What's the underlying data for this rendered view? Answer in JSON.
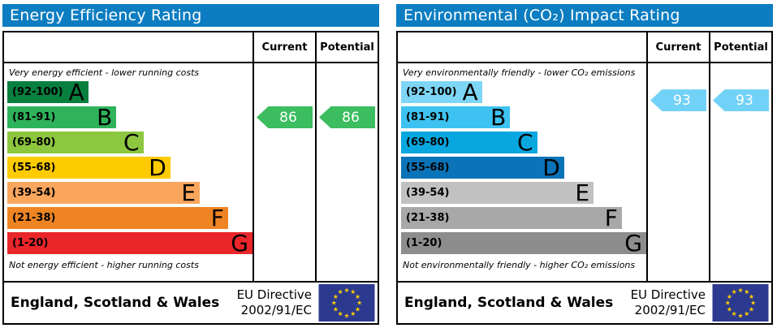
{
  "theme": {
    "header_background": "#0c7dc1",
    "border_color": "#000000"
  },
  "eu_flag": {
    "background": "#2b3a8e",
    "star_color": "#ffcc00"
  },
  "chart_data": [
    {
      "type": "bar",
      "title": "Energy Efficiency Rating",
      "columns": {
        "current": "Current",
        "potential": "Potential"
      },
      "top_note": "Very energy efficient - lower running costs",
      "bottom_note": "Not energy efficient - higher running costs",
      "categories": [
        "A",
        "B",
        "C",
        "D",
        "E",
        "F",
        "G"
      ],
      "bands": [
        {
          "letter": "A",
          "range_label": "(92-100)",
          "min": 92,
          "max": 100,
          "color": "#067f3f",
          "width_pct": 33
        },
        {
          "letter": "B",
          "range_label": "(81-91)",
          "min": 81,
          "max": 91,
          "color": "#2eb35a",
          "width_pct": 44.5
        },
        {
          "letter": "C",
          "range_label": "(69-80)",
          "min": 69,
          "max": 80,
          "color": "#8dc63f",
          "width_pct": 55.5
        },
        {
          "letter": "D",
          "range_label": "(55-68)",
          "min": 55,
          "max": 68,
          "color": "#fecb00",
          "width_pct": 66.5
        },
        {
          "letter": "E",
          "range_label": "(39-54)",
          "min": 39,
          "max": 54,
          "color": "#faa65d",
          "width_pct": 78.5
        },
        {
          "letter": "F",
          "range_label": "(21-38)",
          "min": 21,
          "max": 38,
          "color": "#ee8424",
          "width_pct": 90
        },
        {
          "letter": "G",
          "range_label": "(1-20)",
          "min": 1,
          "max": 20,
          "color": "#e9262a",
          "width_pct": 100
        }
      ],
      "current": {
        "value": 86,
        "color": "#3cbd5f"
      },
      "potential": {
        "value": 86,
        "color": "#3cbd5f"
      },
      "footer": {
        "region": "England, Scotland & Wales",
        "directive_line1": "EU Directive",
        "directive_line2": "2002/91/EC"
      }
    },
    {
      "type": "bar",
      "title": "Environmental (CO₂) Impact Rating",
      "columns": {
        "current": "Current",
        "potential": "Potential"
      },
      "top_note": "Very environmentally friendly - lower CO₂ emissions",
      "bottom_note": "Not environmentally friendly - higher CO₂ emissions",
      "categories": [
        "A",
        "B",
        "C",
        "D",
        "E",
        "F",
        "G"
      ],
      "bands": [
        {
          "letter": "A",
          "range_label": "(92-100)",
          "min": 92,
          "max": 100,
          "color": "#7ed6f6",
          "width_pct": 33
        },
        {
          "letter": "B",
          "range_label": "(81-91)",
          "min": 81,
          "max": 91,
          "color": "#3ec2f1",
          "width_pct": 44.5
        },
        {
          "letter": "C",
          "range_label": "(69-80)",
          "min": 69,
          "max": 80,
          "color": "#09a7e0",
          "width_pct": 55.5
        },
        {
          "letter": "D",
          "range_label": "(55-68)",
          "min": 55,
          "max": 68,
          "color": "#0b73b7",
          "width_pct": 66.5
        },
        {
          "letter": "E",
          "range_label": "(39-54)",
          "min": 39,
          "max": 54,
          "color": "#c0c1c0",
          "width_pct": 78.5
        },
        {
          "letter": "F",
          "range_label": "(21-38)",
          "min": 21,
          "max": 38,
          "color": "#a7a8a7",
          "width_pct": 90
        },
        {
          "letter": "G",
          "range_label": "(1-20)",
          "min": 1,
          "max": 20,
          "color": "#8c8d8c",
          "width_pct": 100
        }
      ],
      "current": {
        "value": 93,
        "color": "#72d1f6"
      },
      "potential": {
        "value": 93,
        "color": "#72d1f6"
      },
      "footer": {
        "region": "England, Scotland & Wales",
        "directive_line1": "EU Directive",
        "directive_line2": "2002/91/EC"
      }
    }
  ]
}
